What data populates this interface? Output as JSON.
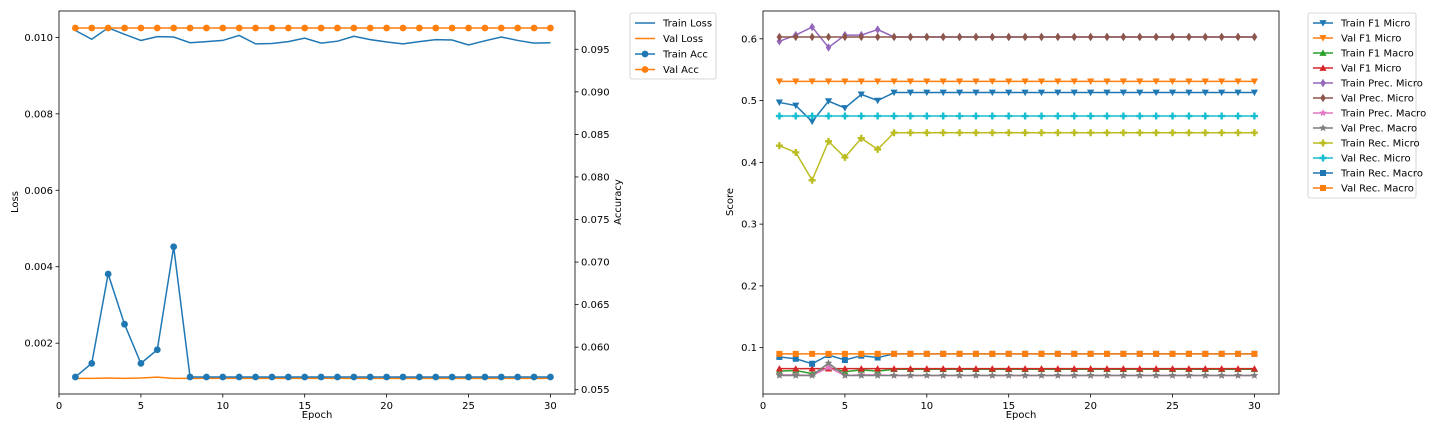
{
  "chart_data": [
    {
      "type": "line",
      "xlabel": "Epoch",
      "ylabel": "Loss",
      "ylabel_right": "Accuracy",
      "x": [
        1,
        2,
        3,
        4,
        5,
        6,
        7,
        8,
        9,
        10,
        11,
        12,
        13,
        14,
        15,
        16,
        17,
        18,
        19,
        20,
        21,
        22,
        23,
        24,
        25,
        26,
        27,
        28,
        29,
        30
      ],
      "xlim": [
        0,
        31.5
      ],
      "xticks": [
        0,
        5,
        10,
        15,
        20,
        25,
        30
      ],
      "ylim": [
        0.00067,
        0.01069
      ],
      "yticks": [
        0.002,
        0.004,
        0.006,
        0.008,
        0.01
      ],
      "ylim_right": [
        0.0545,
        0.0995
      ],
      "yticks_right": [
        0.055,
        0.06,
        0.065,
        0.07,
        0.075,
        0.08,
        0.085,
        0.09,
        0.095
      ],
      "series": [
        {
          "name": "Train Loss",
          "axis": "left",
          "color": "#1f77b4",
          "marker": "none",
          "values": [
            0.01018,
            0.00995,
            0.01025,
            0.01008,
            0.00992,
            0.01002,
            0.01001,
            0.00986,
            0.00989,
            0.00992,
            0.01005,
            0.00983,
            0.00984,
            0.00989,
            0.00998,
            0.00985,
            0.0099,
            0.01003,
            0.00994,
            0.00988,
            0.00983,
            0.00989,
            0.00994,
            0.00993,
            0.0098,
            0.00991,
            0.01001,
            0.00992,
            0.00985,
            0.00986
          ]
        },
        {
          "name": "Val Loss",
          "axis": "left",
          "color": "#ff7f0e",
          "marker": "none",
          "values": [
            0.00108,
            0.00108,
            0.00109,
            0.00108,
            0.00109,
            0.00111,
            0.00108,
            0.00108,
            0.00108,
            0.00108,
            0.00108,
            0.00108,
            0.00108,
            0.00108,
            0.00108,
            0.00108,
            0.00108,
            0.00108,
            0.00108,
            0.00108,
            0.00108,
            0.00108,
            0.00108,
            0.00108,
            0.00108,
            0.00108,
            0.00108,
            0.00108,
            0.00108,
            0.00108
          ]
        },
        {
          "name": "Train Acc",
          "axis": "right",
          "color": "#1f77b4",
          "marker": "circle",
          "values": [
            0.0565,
            0.0581,
            0.0686,
            0.0627,
            0.0581,
            0.0597,
            0.0718,
            0.0565,
            0.0565,
            0.0565,
            0.0565,
            0.0565,
            0.0565,
            0.0565,
            0.0565,
            0.0565,
            0.0565,
            0.0565,
            0.0565,
            0.0565,
            0.0565,
            0.0565,
            0.0565,
            0.0565,
            0.0565,
            0.0565,
            0.0565,
            0.0565,
            0.0565,
            0.0565
          ]
        },
        {
          "name": "Val Acc",
          "axis": "right",
          "color": "#ff7f0e",
          "marker": "circle",
          "values": [
            0.0975,
            0.0975,
            0.0975,
            0.0975,
            0.0975,
            0.0975,
            0.0975,
            0.0975,
            0.0975,
            0.0975,
            0.0975,
            0.0975,
            0.0975,
            0.0975,
            0.0975,
            0.0975,
            0.0975,
            0.0975,
            0.0975,
            0.0975,
            0.0975,
            0.0975,
            0.0975,
            0.0975,
            0.0975,
            0.0975,
            0.0975,
            0.0975,
            0.0975,
            0.0975
          ]
        }
      ]
    },
    {
      "type": "line",
      "xlabel": "Epoch",
      "ylabel": "Score",
      "x": [
        1,
        2,
        3,
        4,
        5,
        6,
        7,
        8,
        9,
        10,
        11,
        12,
        13,
        14,
        15,
        16,
        17,
        18,
        19,
        20,
        21,
        22,
        23,
        24,
        25,
        26,
        27,
        28,
        29,
        30
      ],
      "xlim": [
        0,
        31.5
      ],
      "xticks": [
        0,
        5,
        10,
        15,
        20,
        25,
        30
      ],
      "ylim": [
        0.025,
        0.645
      ],
      "yticks": [
        0.1,
        0.2,
        0.3,
        0.4,
        0.5,
        0.6
      ],
      "series": [
        {
          "name": "Train F1 Micro",
          "color": "#1f77b4",
          "marker": "triangle_down",
          "values": [
            0.497,
            0.492,
            0.466,
            0.499,
            0.488,
            0.51,
            0.5,
            0.513,
            0.513,
            0.513,
            0.513,
            0.513,
            0.513,
            0.513,
            0.513,
            0.513,
            0.513,
            0.513,
            0.513,
            0.513,
            0.513,
            0.513,
            0.513,
            0.513,
            0.513,
            0.513,
            0.513,
            0.513,
            0.513,
            0.513
          ]
        },
        {
          "name": "Val F1 Micro",
          "color": "#ff7f0e",
          "marker": "triangle_down",
          "values": [
            0.531,
            0.531,
            0.531,
            0.531,
            0.531,
            0.531,
            0.531,
            0.531,
            0.531,
            0.531,
            0.531,
            0.531,
            0.531,
            0.531,
            0.531,
            0.531,
            0.531,
            0.531,
            0.531,
            0.531,
            0.531,
            0.531,
            0.531,
            0.531,
            0.531,
            0.531,
            0.531,
            0.531,
            0.531,
            0.531
          ]
        },
        {
          "name": "Train F1 Macro",
          "color": "#2ca02c",
          "marker": "triangle_up",
          "values": [
            0.062,
            0.063,
            0.058,
            0.068,
            0.061,
            0.064,
            0.062,
            0.065,
            0.065,
            0.065,
            0.065,
            0.065,
            0.065,
            0.065,
            0.065,
            0.065,
            0.065,
            0.065,
            0.065,
            0.065,
            0.065,
            0.065,
            0.065,
            0.065,
            0.065,
            0.065,
            0.065,
            0.065,
            0.065,
            0.065
          ]
        },
        {
          "name": "Val F1 Micro",
          "color": "#d62728",
          "marker": "triangle_up",
          "values": [
            0.066,
            0.066,
            0.066,
            0.066,
            0.066,
            0.066,
            0.066,
            0.066,
            0.066,
            0.066,
            0.066,
            0.066,
            0.066,
            0.066,
            0.066,
            0.066,
            0.066,
            0.066,
            0.066,
            0.066,
            0.066,
            0.066,
            0.066,
            0.066,
            0.066,
            0.066,
            0.066,
            0.066,
            0.066,
            0.066
          ]
        },
        {
          "name": "Train Prec. Micro",
          "color": "#9467bd",
          "marker": "diamond",
          "values": [
            0.596,
            0.606,
            0.619,
            0.586,
            0.606,
            0.606,
            0.615,
            0.603,
            0.603,
            0.603,
            0.603,
            0.603,
            0.603,
            0.603,
            0.603,
            0.603,
            0.603,
            0.603,
            0.603,
            0.603,
            0.603,
            0.603,
            0.603,
            0.603,
            0.603,
            0.603,
            0.603,
            0.603,
            0.603,
            0.603
          ]
        },
        {
          "name": "Val Prec. Micro",
          "color": "#8c564b",
          "marker": "diamond",
          "values": [
            0.603,
            0.603,
            0.603,
            0.603,
            0.603,
            0.603,
            0.603,
            0.603,
            0.603,
            0.603,
            0.603,
            0.603,
            0.603,
            0.603,
            0.603,
            0.603,
            0.603,
            0.603,
            0.603,
            0.603,
            0.603,
            0.603,
            0.603,
            0.603,
            0.603,
            0.603,
            0.603,
            0.603,
            0.603,
            0.603
          ]
        },
        {
          "name": "Train Prec. Macro",
          "color": "#e377c2",
          "marker": "star",
          "values": [
            0.056,
            0.056,
            0.055,
            0.068,
            0.055,
            0.056,
            0.056,
            0.055,
            0.055,
            0.055,
            0.055,
            0.055,
            0.055,
            0.055,
            0.055,
            0.055,
            0.055,
            0.055,
            0.055,
            0.055,
            0.055,
            0.055,
            0.055,
            0.055,
            0.055,
            0.055,
            0.055,
            0.055,
            0.055,
            0.055
          ]
        },
        {
          "name": "Val Prec. Macro",
          "color": "#7f7f7f",
          "marker": "star",
          "values": [
            0.055,
            0.055,
            0.055,
            0.075,
            0.055,
            0.055,
            0.055,
            0.055,
            0.055,
            0.055,
            0.055,
            0.055,
            0.055,
            0.055,
            0.055,
            0.055,
            0.055,
            0.055,
            0.055,
            0.055,
            0.055,
            0.055,
            0.055,
            0.055,
            0.055,
            0.055,
            0.055,
            0.055,
            0.055,
            0.055
          ]
        },
        {
          "name": "Train Rec. Micro",
          "color": "#bcbd22",
          "marker": "plus",
          "values": [
            0.427,
            0.416,
            0.371,
            0.434,
            0.408,
            0.439,
            0.421,
            0.448,
            0.448,
            0.448,
            0.448,
            0.448,
            0.448,
            0.448,
            0.448,
            0.448,
            0.448,
            0.448,
            0.448,
            0.448,
            0.448,
            0.448,
            0.448,
            0.448,
            0.448,
            0.448,
            0.448,
            0.448,
            0.448,
            0.448
          ]
        },
        {
          "name": "Val Rec. Micro",
          "color": "#17becf",
          "marker": "plus",
          "values": [
            0.475,
            0.475,
            0.475,
            0.475,
            0.475,
            0.475,
            0.475,
            0.475,
            0.475,
            0.475,
            0.475,
            0.475,
            0.475,
            0.475,
            0.475,
            0.475,
            0.475,
            0.475,
            0.475,
            0.475,
            0.475,
            0.475,
            0.475,
            0.475,
            0.475,
            0.475,
            0.475,
            0.475,
            0.475,
            0.475
          ]
        },
        {
          "name": "Train Rec. Macro",
          "color": "#1f77b4",
          "marker": "square",
          "values": [
            0.085,
            0.082,
            0.074,
            0.088,
            0.08,
            0.087,
            0.084,
            0.09,
            0.09,
            0.09,
            0.09,
            0.09,
            0.09,
            0.09,
            0.09,
            0.09,
            0.09,
            0.09,
            0.09,
            0.09,
            0.09,
            0.09,
            0.09,
            0.09,
            0.09,
            0.09,
            0.09,
            0.09,
            0.09,
            0.09
          ]
        },
        {
          "name": "Val Rec. Macro",
          "color": "#ff7f0e",
          "marker": "square",
          "values": [
            0.09,
            0.09,
            0.09,
            0.09,
            0.09,
            0.09,
            0.09,
            0.09,
            0.09,
            0.09,
            0.09,
            0.09,
            0.09,
            0.09,
            0.09,
            0.09,
            0.09,
            0.09,
            0.09,
            0.09,
            0.09,
            0.09,
            0.09,
            0.09,
            0.09,
            0.09,
            0.09,
            0.09,
            0.09,
            0.09
          ]
        }
      ]
    }
  ]
}
